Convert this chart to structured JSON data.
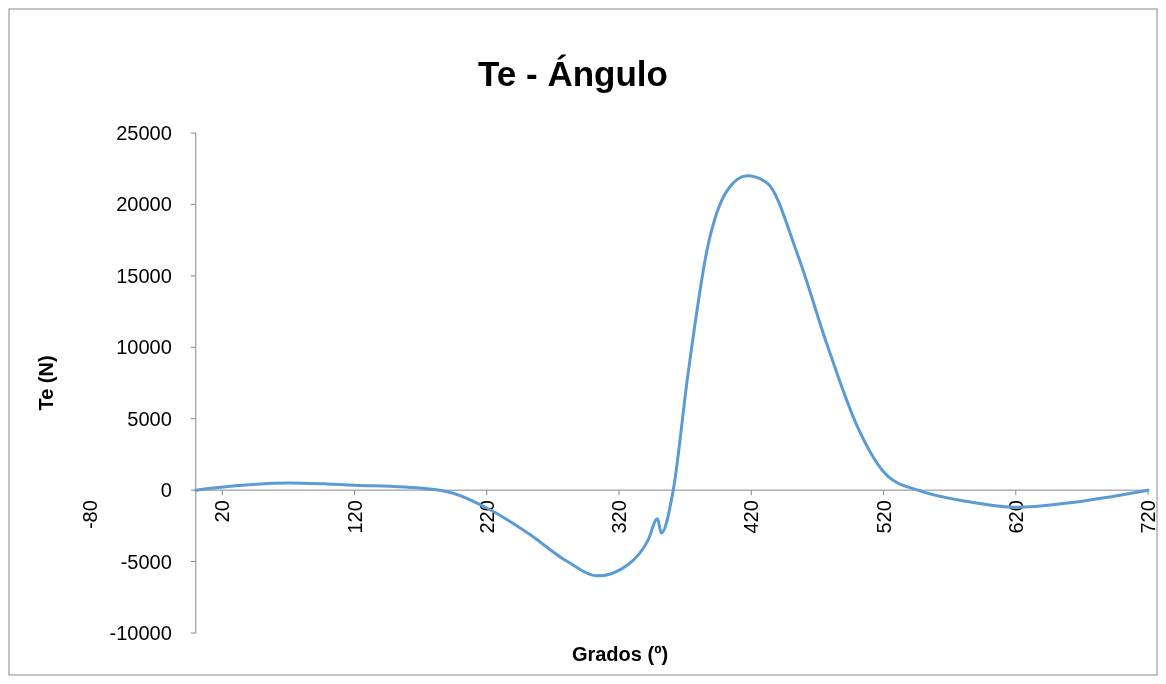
{
  "chart_data": {
    "type": "line",
    "title": "Te - Ángulo",
    "xlabel": "Grados (º)",
    "ylabel": "Te (N)",
    "x": [
      0,
      30,
      70,
      120,
      175,
      194,
      219,
      251,
      281,
      304,
      327,
      342,
      349,
      352,
      361,
      372,
      387,
      402,
      417,
      432,
      455,
      478,
      500,
      523,
      546,
      584,
      621,
      659,
      720
    ],
    "series": [
      {
        "color": "#5b9bd5",
        "values": [
          0,
          300,
          500,
          350,
          100,
          -200,
          -1200,
          -3000,
          -5000,
          -6000,
          -5200,
          -3500,
          -2000,
          -3000,
          0,
          8000,
          17000,
          21000,
          22000,
          21500,
          16500,
          10000,
          4500,
          1000,
          0,
          -800,
          -1200,
          -900,
          0
        ]
      }
    ],
    "xlim": [
      -80,
      720
    ],
    "xticks": [
      -80,
      20,
      120,
      220,
      320,
      420,
      520,
      620,
      720
    ],
    "ylim": [
      -10000,
      25000
    ],
    "yticks": [
      -10000,
      -5000,
      0,
      5000,
      10000,
      15000,
      20000,
      25000
    ],
    "grid": false,
    "marker": "none",
    "line_style": "solid"
  }
}
